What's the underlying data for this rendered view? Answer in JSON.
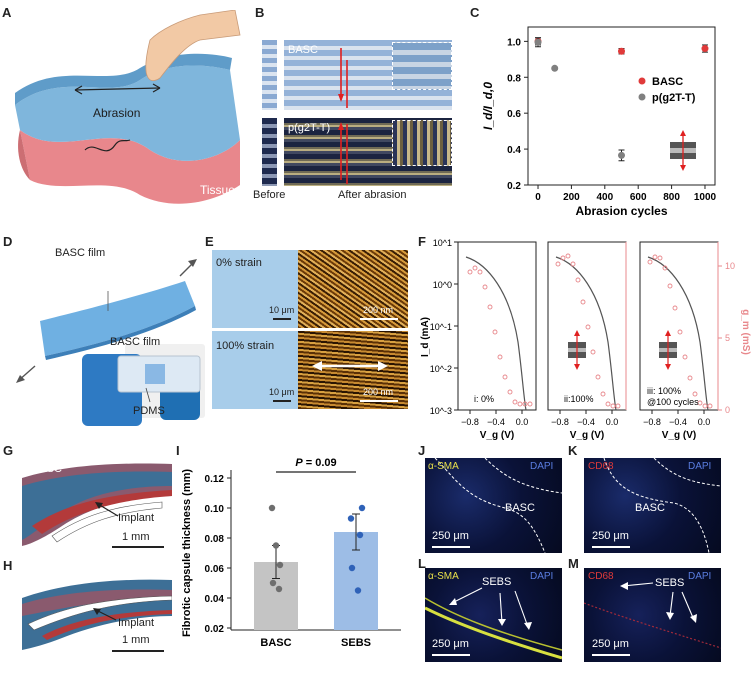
{
  "panels": {
    "A": {
      "letter": "A",
      "abrasion": "Abrasion",
      "tissue": "Tissue"
    },
    "B": {
      "letter": "B",
      "basc": "BASC",
      "p2t": "p(g2T-T)",
      "before": "Before",
      "after": "After abrasion"
    },
    "C": {
      "letter": "C"
    },
    "D": {
      "letter": "D",
      "film1": "BASC film",
      "film2": "BASC film",
      "pdms": "PDMS"
    },
    "E": {
      "letter": "E",
      "strain0": "0% strain",
      "strain100": "100% strain",
      "sb1": "10 μm",
      "sb2": "200 nm",
      "sb3": "10 μm",
      "sb4": "200 nm"
    },
    "F": {
      "letter": "F",
      "ylabel_left": "I_d (mA)",
      "ylabel_right": "g_m (mS)",
      "xlabel": "V_g (V)",
      "sub1": "i: 0%",
      "sub2": "ii:100%",
      "sub3": "iii: 100%",
      "sub3b": "@100 cycles",
      "xticks": [
        "−0.8",
        "−0.4",
        "0.0"
      ],
      "yticks_left": [
        "10^1",
        "10^0",
        "10^-1",
        "10^-2",
        "10^-3"
      ],
      "yticks_right": [
        "10",
        "5",
        "0"
      ]
    },
    "G": {
      "letter": "G",
      "material": "BASC",
      "implant": "Implant",
      "scale": "1 mm"
    },
    "H": {
      "letter": "H",
      "material": "SEBS",
      "implant": "Implant",
      "scale": "1 mm"
    },
    "I": {
      "letter": "I",
      "pvalue_prefix": "P",
      "pvalue": " = 0.09"
    },
    "J": {
      "letter": "J",
      "stain": "α-SMA",
      "dapi": "DAPI",
      "material": "BASC",
      "scale": "250 μm"
    },
    "K": {
      "letter": "K",
      "stain": "CD68",
      "dapi": "DAPI",
      "material": "BASC",
      "scale": "250 μm"
    },
    "L": {
      "letter": "L",
      "stain": "α-SMA",
      "dapi": "DAPI",
      "material": "SEBS",
      "scale": "250 μm"
    },
    "M": {
      "letter": "M",
      "stain": "CD68",
      "dapi": "DAPI",
      "material": "SEBS",
      "scale": "250 μm"
    }
  },
  "colors": {
    "basc": "#e03a3a",
    "p2t": "#808080",
    "bar_basc": "#c4c4c4",
    "bar_sebs": "#9dbde6",
    "dot_basc": "#6e6e6e",
    "dot_sebs": "#2f62b8",
    "gm": "#e8888c"
  },
  "chart_data": [
    {
      "type": "scatter",
      "panel": "C",
      "xlabel": "Abrasion cycles",
      "ylabel": "I_d/I_d,0",
      "xlim": [
        -60,
        1060
      ],
      "ylim": [
        0.2,
        1.08
      ],
      "xticks": [
        0,
        200,
        400,
        600,
        800,
        1000
      ],
      "yticks": [
        0.2,
        0.4,
        0.6,
        0.8,
        1.0
      ],
      "legend_position": "right",
      "series": [
        {
          "name": "BASC",
          "x": [
            0,
            500,
            1000
          ],
          "y": [
            1.0,
            0.945,
            0.96
          ],
          "err": [
            0.02,
            0.015,
            0.02
          ]
        },
        {
          "name": "p(g2T-T)",
          "x": [
            0,
            100,
            500
          ],
          "y": [
            0.995,
            0.85,
            0.365
          ],
          "err": [
            0.025,
            0.006,
            0.03
          ]
        }
      ]
    },
    {
      "type": "bar",
      "panel": "I",
      "ylabel": "Fibrotic capsule thickness (mm)",
      "categories": [
        "BASC",
        "SEBS"
      ],
      "values": [
        0.064,
        0.084
      ],
      "err": [
        0.011,
        0.012
      ],
      "ylim": [
        0.02,
        0.12
      ],
      "yticks": [
        0.02,
        0.04,
        0.06,
        0.08,
        0.1,
        0.12
      ],
      "points": [
        [
          0.1,
          0.075,
          0.062,
          0.05,
          0.046
        ],
        [
          0.1,
          0.093,
          0.082,
          0.06,
          0.045
        ]
      ]
    }
  ]
}
